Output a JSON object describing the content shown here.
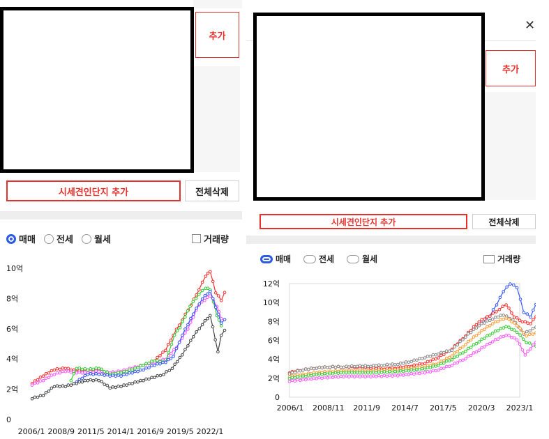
{
  "left": {
    "add_button": "추가",
    "add_complex_button": "시세견인단지 추가",
    "clear_all_button": "전체삭제",
    "radio_options": [
      "매매",
      "전세",
      "월세"
    ],
    "selected_radio": "매매",
    "volume_checkbox": "거래량"
  },
  "right": {
    "add_button": "추가",
    "add_complex_button": "시세견인단지 추가",
    "clear_all_button": "전체삭제",
    "radio_options": [
      "매매",
      "전세",
      "월세"
    ],
    "selected_radio": "매매",
    "volume_checkbox": "거래량",
    "close_glyph": "✕"
  },
  "colors": {
    "accent_red": "#e5322d",
    "radio_blue": "#2d5be3"
  },
  "chart_data": [
    {
      "type": "line",
      "y_tick_labels": [
        "0",
        "2억",
        "4억",
        "6억",
        "8억",
        "10억"
      ],
      "ylim": [
        0,
        10
      ],
      "x_tick_labels": [
        "2006/1",
        "2008/9",
        "2011/5",
        "2014/1",
        "2016/9",
        "2019/5",
        "2022/1"
      ],
      "x_range_years": [
        2006.0,
        2023.3
      ],
      "grid": false,
      "series": [
        {
          "color": "#ff2b2b",
          "points": [
            [
              2006.0,
              2.4
            ],
            [
              2007.0,
              2.9
            ],
            [
              2008.0,
              3.3
            ],
            [
              2009.0,
              3.4
            ],
            [
              2010.0,
              3.2
            ],
            [
              2011.0,
              3.3
            ],
            [
              2012.0,
              3.3
            ],
            [
              2013.0,
              3.0
            ],
            [
              2014.0,
              3.1
            ],
            [
              2015.0,
              3.3
            ],
            [
              2016.0,
              3.6
            ],
            [
              2017.0,
              3.9
            ],
            [
              2018.0,
              4.6
            ],
            [
              2018.7,
              5.6
            ],
            [
              2019.5,
              6.6
            ],
            [
              2020.3,
              7.6
            ],
            [
              2021.0,
              8.6
            ],
            [
              2021.6,
              9.5
            ],
            [
              2022.0,
              9.8
            ],
            [
              2022.5,
              8.4
            ],
            [
              2023.0,
              7.9
            ],
            [
              2023.3,
              8.4
            ]
          ]
        },
        {
          "color": "#ff55ff",
          "points": [
            [
              2006.0,
              2.3
            ],
            [
              2007.0,
              2.6
            ],
            [
              2008.0,
              3.0
            ],
            [
              2009.0,
              3.2
            ],
            [
              2010.0,
              3.1
            ],
            [
              2011.0,
              3.1
            ],
            [
              2012.0,
              3.2
            ],
            [
              2013.0,
              3.1
            ],
            [
              2014.0,
              3.2
            ],
            [
              2015.0,
              3.4
            ],
            [
              2016.0,
              3.6
            ],
            [
              2017.0,
              3.8
            ],
            [
              2018.0,
              4.0
            ],
            [
              2019.0,
              4.8
            ],
            [
              2020.0,
              6.0
            ],
            [
              2021.0,
              7.6
            ],
            [
              2022.0,
              8.2
            ],
            [
              2022.6,
              7.5
            ],
            [
              2023.0,
              6.7
            ],
            [
              2023.3,
              6.6
            ]
          ]
        },
        {
          "color": "#33cc33",
          "points": [
            [
              2009.5,
              2.6
            ],
            [
              2010.0,
              3.4
            ],
            [
              2011.0,
              3.3
            ],
            [
              2012.0,
              3.4
            ],
            [
              2013.0,
              3.0
            ],
            [
              2014.0,
              3.1
            ],
            [
              2015.0,
              3.3
            ],
            [
              2016.0,
              3.6
            ],
            [
              2017.0,
              3.9
            ],
            [
              2018.0,
              3.8
            ],
            [
              2018.8,
              5.6
            ],
            [
              2019.3,
              6.1
            ],
            [
              2020.2,
              7.5
            ],
            [
              2021.0,
              8.3
            ],
            [
              2021.6,
              8.7
            ],
            [
              2022.0,
              8.6
            ],
            [
              2022.6,
              6.9
            ],
            [
              2023.0,
              6.2
            ]
          ]
        },
        {
          "color": "#3355ff",
          "points": [
            [
              2010.0,
              2.5
            ],
            [
              2011.0,
              3.0
            ],
            [
              2012.0,
              3.0
            ],
            [
              2013.0,
              2.9
            ],
            [
              2014.0,
              2.9
            ],
            [
              2015.0,
              3.1
            ],
            [
              2016.0,
              3.3
            ],
            [
              2017.0,
              3.6
            ],
            [
              2018.0,
              3.8
            ],
            [
              2018.7,
              4.2
            ],
            [
              2019.5,
              5.6
            ],
            [
              2020.5,
              7.0
            ],
            [
              2021.3,
              8.0
            ],
            [
              2022.0,
              8.5
            ],
            [
              2023.0,
              6.4
            ],
            [
              2023.3,
              6.6
            ]
          ]
        },
        {
          "color": "#444444",
          "points": [
            [
              2006.0,
              1.4
            ],
            [
              2007.0,
              1.6
            ],
            [
              2008.0,
              2.2
            ],
            [
              2009.0,
              2.2
            ],
            [
              2010.0,
              2.4
            ],
            [
              2011.0,
              2.6
            ],
            [
              2012.0,
              2.6
            ],
            [
              2013.0,
              2.1
            ],
            [
              2014.0,
              2.2
            ],
            [
              2015.0,
              2.4
            ],
            [
              2016.0,
              2.6
            ],
            [
              2017.0,
              2.8
            ],
            [
              2017.8,
              3.0
            ],
            [
              2018.6,
              3.4
            ],
            [
              2019.5,
              4.3
            ],
            [
              2020.5,
              5.5
            ],
            [
              2021.3,
              6.3
            ],
            [
              2022.0,
              6.9
            ],
            [
              2022.7,
              4.5
            ],
            [
              2023.0,
              5.6
            ],
            [
              2023.3,
              5.9
            ]
          ]
        }
      ]
    },
    {
      "type": "line",
      "y_tick_labels": [
        "0",
        "2억",
        "4억",
        "6억",
        "8억",
        "10억",
        "12억"
      ],
      "ylim": [
        0,
        12
      ],
      "x_tick_labels": [
        "2006/1",
        "2008/11",
        "2011/9",
        "2014/7",
        "2017/5",
        "2020/3",
        "2023/1"
      ],
      "x_range_years": [
        2006.0,
        2023.0
      ],
      "grid": false,
      "series": [
        {
          "color": "#3355ff",
          "points": [
            [
              2020.3,
              8.1
            ],
            [
              2020.8,
              8.6
            ],
            [
              2021.3,
              9.8
            ],
            [
              2021.8,
              11.2
            ],
            [
              2022.3,
              12.0
            ],
            [
              2022.8,
              11.6
            ],
            [
              2023.3,
              9.0
            ],
            [
              2023.8,
              8.5
            ],
            [
              2024.2,
              9.8
            ]
          ]
        },
        {
          "color": "#ff2b2b",
          "points": [
            [
              2006.0,
              2.6
            ],
            [
              2007.0,
              2.9
            ],
            [
              2008.0,
              3.1
            ],
            [
              2009.0,
              3.2
            ],
            [
              2010.0,
              3.2
            ],
            [
              2011.0,
              3.2
            ],
            [
              2012.0,
              3.1
            ],
            [
              2013.0,
              3.0
            ],
            [
              2014.0,
              3.1
            ],
            [
              2015.0,
              3.3
            ],
            [
              2016.0,
              3.6
            ],
            [
              2017.0,
              4.2
            ],
            [
              2018.0,
              5.1
            ],
            [
              2019.0,
              6.5
            ],
            [
              2020.0,
              8.0
            ],
            [
              2020.8,
              8.6
            ],
            [
              2021.5,
              9.3
            ],
            [
              2022.0,
              9.8
            ],
            [
              2022.6,
              8.5
            ],
            [
              2023.2,
              8.0
            ],
            [
              2023.8,
              7.8
            ],
            [
              2024.2,
              8.5
            ]
          ]
        },
        {
          "color": "#888888",
          "points": [
            [
              2006.0,
              2.5
            ],
            [
              2007.0,
              2.9
            ],
            [
              2008.0,
              3.1
            ],
            [
              2009.0,
              3.2
            ],
            [
              2010.0,
              3.2
            ],
            [
              2011.0,
              3.3
            ],
            [
              2012.0,
              3.3
            ],
            [
              2013.0,
              3.4
            ],
            [
              2014.0,
              3.5
            ],
            [
              2015.0,
              3.8
            ],
            [
              2016.0,
              4.2
            ],
            [
              2017.0,
              4.6
            ],
            [
              2018.0,
              5.0
            ],
            [
              2019.0,
              6.4
            ],
            [
              2020.0,
              7.6
            ],
            [
              2021.0,
              8.3
            ],
            [
              2021.8,
              8.7
            ],
            [
              2022.5,
              8.2
            ],
            [
              2023.3,
              6.7
            ],
            [
              2024.2,
              7.4
            ]
          ]
        },
        {
          "color": "#ff9933",
          "points": [
            [
              2006.0,
              2.2
            ],
            [
              2008.0,
              2.6
            ],
            [
              2010.0,
              2.8
            ],
            [
              2012.0,
              2.8
            ],
            [
              2014.0,
              2.9
            ],
            [
              2016.0,
              3.2
            ],
            [
              2017.0,
              3.6
            ],
            [
              2018.0,
              4.4
            ],
            [
              2019.0,
              5.6
            ],
            [
              2020.0,
              6.8
            ],
            [
              2021.0,
              7.8
            ],
            [
              2022.0,
              8.4
            ],
            [
              2022.8,
              7.6
            ],
            [
              2023.5,
              6.5
            ],
            [
              2024.2,
              6.8
            ]
          ]
        },
        {
          "color": "#33cc33",
          "points": [
            [
              2006.0,
              2.0
            ],
            [
              2008.0,
              2.4
            ],
            [
              2010.0,
              2.6
            ],
            [
              2012.0,
              2.6
            ],
            [
              2014.0,
              2.7
            ],
            [
              2016.0,
              3.0
            ],
            [
              2017.0,
              3.4
            ],
            [
              2018.0,
              4.0
            ],
            [
              2019.0,
              4.9
            ],
            [
              2020.0,
              5.9
            ],
            [
              2021.0,
              6.8
            ],
            [
              2022.0,
              7.5
            ],
            [
              2022.8,
              6.9
            ],
            [
              2023.5,
              5.8
            ],
            [
              2024.2,
              5.4
            ]
          ]
        },
        {
          "color": "#ff55ff",
          "points": [
            [
              2006.0,
              1.7
            ],
            [
              2008.0,
              2.0
            ],
            [
              2010.0,
              2.2
            ],
            [
              2012.0,
              2.2
            ],
            [
              2014.0,
              2.3
            ],
            [
              2016.0,
              2.6
            ],
            [
              2017.0,
              2.9
            ],
            [
              2018.0,
              3.4
            ],
            [
              2019.0,
              4.1
            ],
            [
              2020.0,
              5.0
            ],
            [
              2021.0,
              5.9
            ],
            [
              2022.0,
              6.6
            ],
            [
              2022.8,
              6.1
            ],
            [
              2023.4,
              4.5
            ],
            [
              2024.2,
              5.8
            ]
          ]
        }
      ]
    }
  ]
}
